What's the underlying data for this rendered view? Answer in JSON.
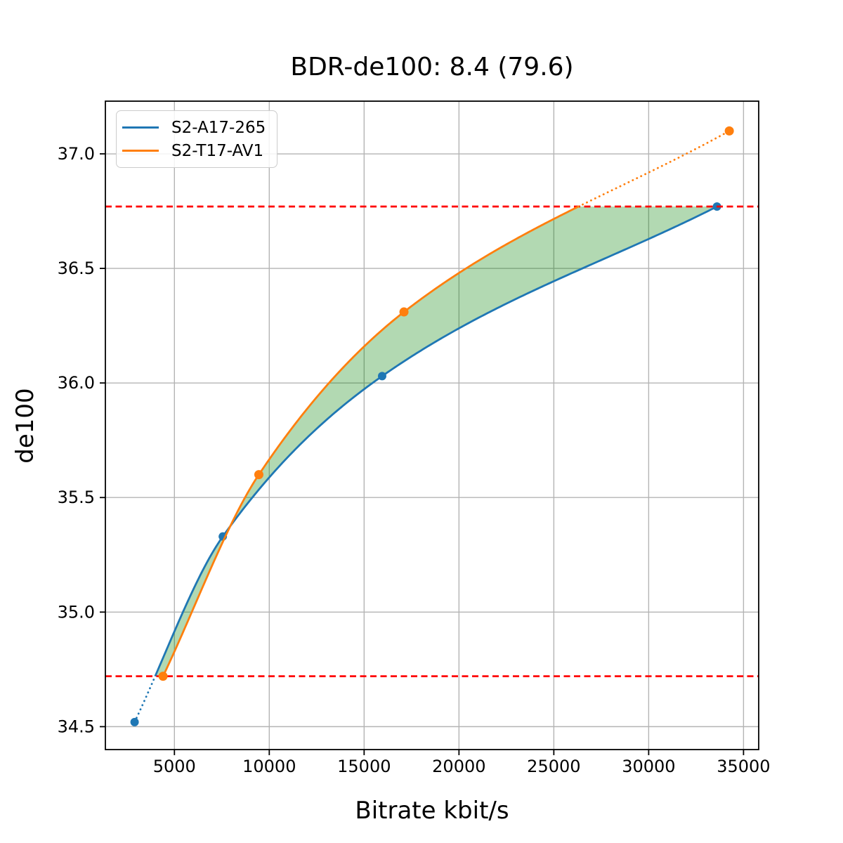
{
  "figure": {
    "title": "BDR-de100: 8.4 (79.6)",
    "xlabel": "Bitrate kbit/s",
    "ylabel": "de100"
  },
  "legend": {
    "position": "upper left",
    "entries": [
      {
        "label": "S2-A17-265",
        "color": "#1f77b4"
      },
      {
        "label": "S2-T17-AV1",
        "color": "#ff7f0e"
      }
    ]
  },
  "chart_data": {
    "type": "line",
    "title": "BDR-de100: 8.4 (79.6)",
    "xlabel": "Bitrate kbit/s",
    "ylabel": "de100",
    "xlim": [
      1360,
      35800
    ],
    "ylim": [
      34.4,
      37.23
    ],
    "xticks": [
      5000,
      10000,
      15000,
      20000,
      25000,
      30000,
      35000
    ],
    "yticks": [
      34.5,
      35.0,
      35.5,
      36.0,
      36.5,
      37.0
    ],
    "grid": true,
    "grid_color": "#b4b4b4",
    "legend_position": "upper left",
    "series": [
      {
        "name": "S2-A17-265",
        "color": "#1f77b4",
        "x": [
          2900,
          7550,
          15950,
          33600
        ],
        "y": [
          34.52,
          35.33,
          36.03,
          36.77
        ],
        "note": "solid within overlap range, dotted below lower red line"
      },
      {
        "name": "S2-T17-AV1",
        "color": "#ff7f0e",
        "x": [
          4400,
          9450,
          17100,
          34250
        ],
        "y": [
          34.72,
          35.6,
          36.31,
          37.1
        ],
        "note": "solid within overlap range, dotted above upper red line"
      }
    ],
    "overlap_lines": {
      "color": "#ff0000",
      "y_low": 34.72,
      "y_high": 36.77,
      "style": "dashed"
    },
    "shaded_region": {
      "color": "#008000",
      "alpha": 0.3
    }
  }
}
